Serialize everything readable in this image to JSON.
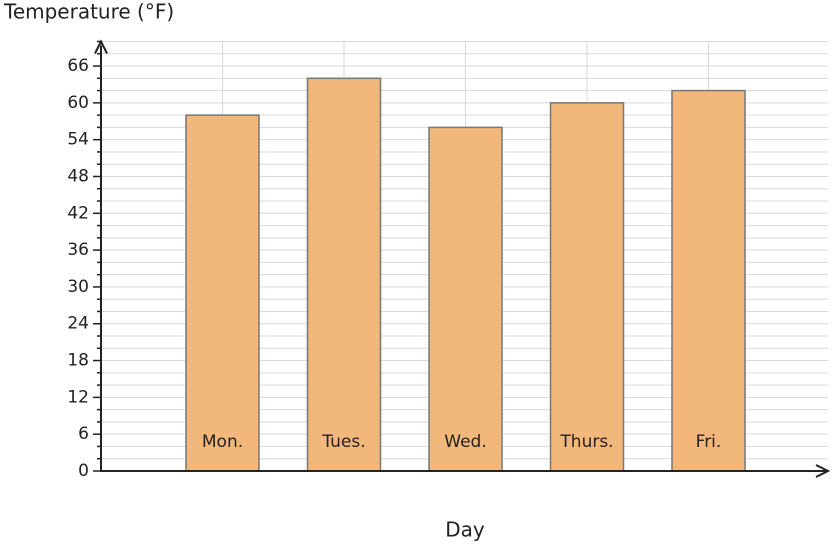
{
  "chart_data": {
    "type": "bar",
    "title": "Temperature (°F)",
    "x_label": "Day",
    "categories": [
      "Mon.",
      "Tues.",
      "Wed.",
      "Thurs.",
      "Fri."
    ],
    "values": [
      58,
      64,
      56,
      60,
      62
    ],
    "color": "#f2b77b",
    "ylim": [
      0,
      70
    ],
    "yticks": [
      0,
      6,
      12,
      18,
      24,
      30,
      36,
      42,
      48,
      54,
      60,
      66
    ],
    "minor_yticks": [
      2,
      4,
      8,
      10,
      14,
      16,
      20,
      22,
      26,
      28,
      32,
      34,
      38,
      40,
      44,
      46,
      50,
      52,
      56,
      58,
      62,
      64,
      68,
      70
    ],
    "grid": true
  }
}
